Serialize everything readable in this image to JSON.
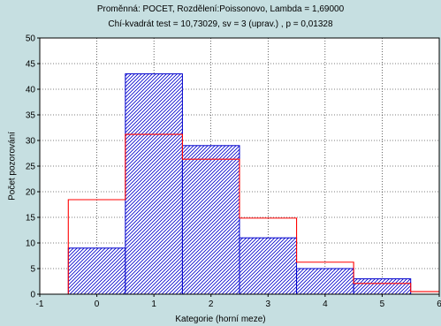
{
  "chart_data": {
    "type": "bar",
    "title": "Proměnná: POCET, Rozdělení:Poissonovo, Lambda = 1,69000",
    "subtitle": "Chí-kvadrát test = 10,73029, sv = 3 (uprav.) , p = 0,01328",
    "xlabel": "Kategorie (horní meze)",
    "ylabel": "Počet pozorování",
    "xlim": [
      -1,
      6
    ],
    "ylim": [
      0,
      50
    ],
    "x_ticks": [
      "-1",
      "0",
      "1",
      "2",
      "3",
      "4",
      "5",
      "6"
    ],
    "y_ticks": [
      "0",
      "5",
      "10",
      "15",
      "20",
      "25",
      "30",
      "35",
      "40",
      "45",
      "50"
    ],
    "grid": true,
    "categories": [
      0,
      1,
      2,
      3,
      4,
      5
    ],
    "observed": [
      9,
      43,
      29,
      11,
      5,
      3
    ],
    "expected": [
      18.45,
      31.2,
      26.35,
      14.85,
      6.25,
      2.1
    ],
    "expected_tails": [
      0,
      0.5
    ],
    "colors": {
      "bar_stroke": "#0000cc",
      "hatch": "#0000cc",
      "expected_line": "#ff0000",
      "plot_bg": "#ffffff"
    }
  }
}
